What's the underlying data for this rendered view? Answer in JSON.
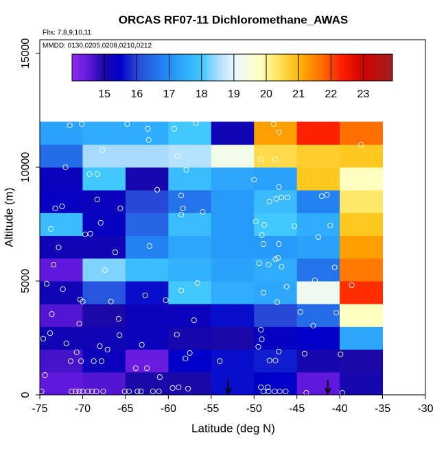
{
  "chart_data": {
    "type": "heatmap",
    "title": "ORCAS RF07-11 Dichloromethane_AWAS",
    "subtitle": "Flts: 7,8,9,10,11",
    "note": "MMDD: 0130,0205,0208,0210,0212",
    "x_label": "Latitude (deg N)",
    "y_label": "Altitude (m)",
    "xlim": [
      -75,
      -30
    ],
    "ylim": [
      0,
      15600
    ],
    "xticks": [
      -75,
      -70,
      -65,
      -60,
      -55,
      -50,
      -45,
      -40,
      -35,
      -30
    ],
    "yticks": [
      0,
      5000,
      10000,
      15000
    ],
    "x_edges": [
      -75,
      -70,
      -65,
      -60,
      -55,
      -50,
      -45,
      -40,
      -35
    ],
    "y_edges": [
      0,
      1000,
      2000,
      3000,
      4000,
      5000,
      6000,
      7000,
      8000,
      9000,
      10000,
      11000,
      12000
    ],
    "values": [
      [
        14.5,
        14.6,
        15.0,
        15.0,
        15.6,
        15.5,
        14.5,
        15.1
      ],
      [
        14.7,
        15.3,
        14.4,
        15.5,
        15.6,
        15.7,
        15.1,
        15.0
      ],
      [
        15.2,
        15.2,
        15.3,
        15.1,
        15.0,
        15.4,
        15.5,
        17.4
      ],
      [
        14.6,
        15.0,
        15.3,
        15.3,
        15.6,
        16.0,
        16.5,
        19.8
      ],
      [
        15.2,
        16.2,
        15.6,
        18.0,
        17.5,
        17.4,
        19.2,
        22.2
      ],
      [
        14.5,
        18.3,
        17.8,
        17.6,
        17.3,
        17.5,
        16.6,
        21.6
      ],
      [
        15.2,
        15.2,
        16.8,
        17.4,
        17.2,
        17.2,
        17.3,
        21.2
      ],
      [
        17.8,
        15.4,
        16.4,
        17.8,
        17.2,
        18.0,
        17.5,
        20.8
      ],
      [
        15.4,
        15.3,
        16.0,
        16.6,
        17.2,
        17.8,
        16.8,
        20.3
      ],
      [
        15.3,
        18.0,
        15.1,
        17.8,
        17.4,
        17.3,
        20.8,
        19.8
      ],
      [
        16.5,
        18.5,
        18.5,
        18.6,
        19.3,
        20.5,
        20.7,
        20.8
      ],
      [
        17.3,
        17.5,
        17.5,
        18.0,
        15.2,
        21.2,
        22.3,
        21.7
      ]
    ],
    "colorbar": {
      "lim": [
        14,
        23.9
      ],
      "ticks": [
        15,
        16,
        17,
        18,
        19,
        20,
        21,
        22,
        23
      ]
    },
    "colorscale": [
      {
        "value": 14,
        "color": "#8c2cf0"
      },
      {
        "value": 14.5,
        "color": "#6018dc"
      },
      {
        "value": 15,
        "color": "#1a08a8"
      },
      {
        "value": 15.5,
        "color": "#0000c8"
      },
      {
        "value": 16,
        "color": "#2848d8"
      },
      {
        "value": 17,
        "color": "#2090f8"
      },
      {
        "value": 18,
        "color": "#40c8ff"
      },
      {
        "value": 18.5,
        "color": "#a8dcff"
      },
      {
        "value": 19,
        "color": "#e8f8ff"
      },
      {
        "value": 19.8,
        "color": "#ffffc0"
      },
      {
        "value": 20.3,
        "color": "#ffe868"
      },
      {
        "value": 20.8,
        "color": "#ffc820"
      },
      {
        "value": 21.2,
        "color": "#ffa000"
      },
      {
        "value": 21.7,
        "color": "#ff7000"
      },
      {
        "value": 22.3,
        "color": "#ff2000"
      },
      {
        "value": 23,
        "color": "#d00000"
      },
      {
        "value": 23.9,
        "color": "#a02020"
      }
    ],
    "points": {
      "x": [
        -71.5,
        -70.1,
        -64.8,
        -62.4,
        -62.3,
        -59.3,
        -56.8,
        -47.7,
        -47.1,
        -37.5,
        -67.7,
        -58.9,
        -57.9,
        -72.0,
        -49.2,
        -47.5,
        -69.2,
        -68.3,
        -61.3,
        -50.0,
        -47.1,
        -73.2,
        -72.4,
        -68.3,
        -65.6,
        -58.3,
        -58.5,
        -56.0,
        -58.5,
        -48.2,
        -47.4,
        -46.8,
        -46.1,
        -42.1,
        -41.5,
        -73.7,
        -67.9,
        -69.1,
        -69.7,
        -49.8,
        -48.8,
        -49.1,
        -45.3,
        -42.5,
        -41.1,
        -72.8,
        -66.2,
        -62.2,
        -48.9,
        -47.1,
        -47.2,
        -73.4,
        -67.4,
        -49.4,
        -48.3,
        -47.5,
        -46.8,
        -40.6,
        -42.9,
        -74.2,
        -72.3,
        -70.3,
        -70.0,
        -66.7,
        -62.7,
        -60.3,
        -58.5,
        -56.6,
        -48.9,
        -47.3,
        -46.2,
        -38.6,
        -73.6,
        -70.4,
        -65.8,
        -57.0,
        -44.6,
        -40.4,
        -43.1,
        -73.8,
        -74.6,
        -71.9,
        -65.7,
        -68.0,
        -63.1,
        -59.0,
        -49.2,
        -49.1,
        -70.7,
        -71.4,
        -70.2,
        -68.7,
        -67.8,
        -67.1,
        -63.8,
        -62.5,
        -58.0,
        -57.5,
        -54.0,
        -49.5,
        -48.2,
        -47.5,
        -47.1,
        -44.1,
        -39.9,
        -74.4,
        -61.0,
        -58.8,
        -57.7,
        -49.2,
        -48.4,
        -74.8,
        -71.3,
        -70.8,
        -70.4,
        -70.0,
        -69.4,
        -68.9,
        -68.4,
        -67.6,
        -65.1,
        -64.6,
        -63.6,
        -63.2,
        -61.8,
        -61.1,
        -59.5,
        -48.9,
        -48.3,
        -47.6,
        -47.0,
        -46.3,
        -43.9,
        -39.7
      ],
      "y": [
        11840,
        11900,
        11900,
        11690,
        11200,
        11690,
        11930,
        11900,
        11540,
        10990,
        10750,
        10480,
        9880,
        10000,
        10330,
        10330,
        9700,
        9700,
        9010,
        9460,
        9130,
        8190,
        8280,
        8580,
        8190,
        8190,
        7920,
        8040,
        8760,
        8490,
        8610,
        8670,
        8670,
        8730,
        8790,
        7290,
        7560,
        7080,
        7050,
        7620,
        7470,
        7020,
        7410,
        6930,
        7440,
        6480,
        6260,
        6540,
        6630,
        6630,
        6020,
        5720,
        5480,
        5780,
        5720,
        5960,
        5630,
        5600,
        5030,
        4880,
        4640,
        4190,
        4100,
        4100,
        4370,
        4160,
        4580,
        4910,
        4490,
        4070,
        4760,
        4820,
        3550,
        3130,
        3340,
        3280,
        3640,
        3610,
        3040,
        2710,
        2470,
        2260,
        2620,
        2140,
        2200,
        2650,
        2860,
        2440,
        1870,
        1480,
        1480,
        1480,
        1480,
        1990,
        1170,
        1170,
        1600,
        1840,
        1480,
        2110,
        1510,
        1510,
        1900,
        1810,
        1780,
        870,
        780,
        330,
        270,
        330,
        330,
        150,
        150,
        150,
        150,
        150,
        150,
        150,
        150,
        150,
        150,
        150,
        150,
        150,
        150,
        150,
        300,
        150,
        150,
        150,
        150,
        150,
        90,
        90
      ]
    },
    "arrows": [
      -53.0,
      -41.4
    ]
  }
}
